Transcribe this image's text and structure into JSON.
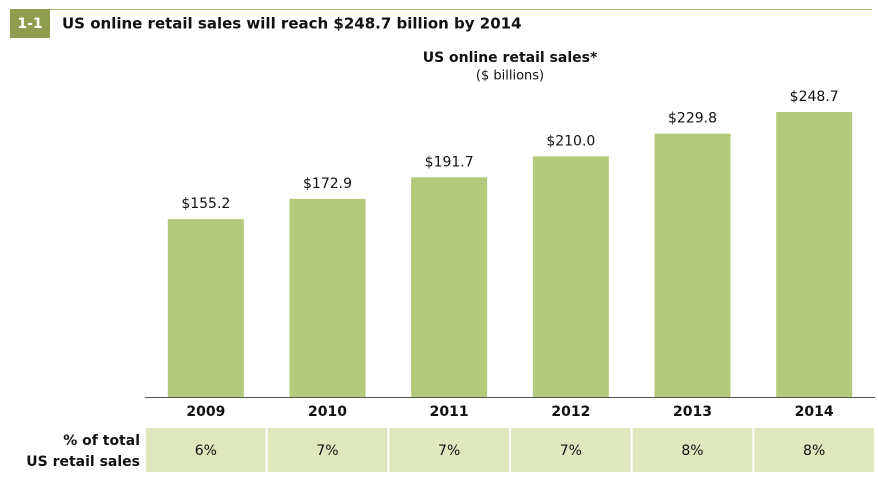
{
  "figure_number": "1-1",
  "headline": "US online retail sales will reach $248.7 billion by 2014",
  "chart_data": {
    "type": "bar",
    "title": "US online retail sales*",
    "subtitle": "($ billions)",
    "categories": [
      "2009",
      "2010",
      "2011",
      "2012",
      "2013",
      "2014"
    ],
    "values": [
      155.2,
      172.9,
      191.7,
      210.0,
      229.8,
      248.7
    ],
    "value_labels": [
      "$155.2",
      "$172.9",
      "$191.7",
      "$210.0",
      "$229.8",
      "$248.7"
    ],
    "color": "#b5c97a"
  },
  "share_row": {
    "label": [
      "% of total",
      "US retail sales"
    ],
    "values": [
      6,
      7,
      7,
      7,
      8,
      8
    ],
    "value_labels": [
      "6%",
      "7%",
      "7%",
      "7%",
      "8%",
      "8%"
    ]
  }
}
